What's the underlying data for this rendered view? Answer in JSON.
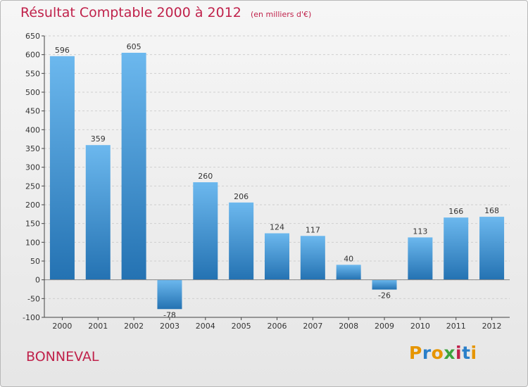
{
  "header": {
    "title": "Résultat Comptable 2000 à 2012",
    "unit": "(en milliers d'€)"
  },
  "footer": {
    "location": "BONNEVAL",
    "logo": {
      "letters": [
        "P",
        "r",
        "o",
        "x",
        "i",
        "t",
        "i"
      ],
      "colors": [
        "#e69500",
        "#2a7fc9",
        "#e69500",
        "#3da33d",
        "#c0224b",
        "#2a7fc9",
        "#e69500"
      ]
    }
  },
  "colors": {
    "bar_top": "#6cb8ee",
    "bar_bottom": "#2472b2",
    "axis": "#444444",
    "grid": "#cfcfcf",
    "title": "#c0224b"
  },
  "chart_data": {
    "type": "bar",
    "categories": [
      "2000",
      "2001",
      "2002",
      "2003",
      "2004",
      "2005",
      "2006",
      "2007",
      "2008",
      "2009",
      "2010",
      "2011",
      "2012"
    ],
    "values": [
      596,
      359,
      605,
      -78,
      260,
      206,
      124,
      117,
      40,
      -26,
      113,
      166,
      168
    ],
    "data_labels": [
      "596",
      "359",
      "605",
      "-78",
      "260",
      "206",
      "124",
      "117",
      "40",
      "-26",
      "113",
      "166",
      "168"
    ],
    "yticks": [
      -100,
      -50,
      0,
      50,
      100,
      150,
      200,
      250,
      300,
      350,
      400,
      450,
      500,
      550,
      600,
      650
    ],
    "ylim": [
      -100,
      650
    ],
    "grid": true
  }
}
